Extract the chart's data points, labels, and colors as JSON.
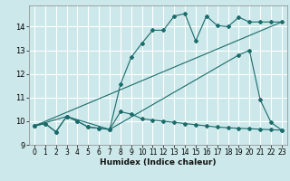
{
  "xlabel": "Humidex (Indice chaleur)",
  "bg_color": "#cde8ea",
  "grid_color": "#ffffff",
  "line_color": "#1a6b6b",
  "xlim": [
    -0.5,
    23.5
  ],
  "ylim": [
    9.0,
    14.9
  ],
  "yticks": [
    9,
    10,
    11,
    12,
    13,
    14
  ],
  "xticks": [
    0,
    1,
    2,
    3,
    4,
    5,
    6,
    7,
    8,
    9,
    10,
    11,
    12,
    13,
    14,
    15,
    16,
    17,
    18,
    19,
    20,
    21,
    22,
    23
  ],
  "line1_x": [
    0,
    1,
    2,
    3,
    4,
    5,
    6,
    7,
    8,
    9,
    10,
    11,
    12,
    13,
    14,
    15,
    16,
    17,
    18,
    19,
    20,
    21,
    22,
    23
  ],
  "line1_y": [
    9.8,
    9.9,
    9.55,
    10.2,
    10.0,
    9.75,
    9.7,
    9.65,
    11.55,
    12.7,
    13.3,
    13.85,
    13.85,
    14.45,
    14.55,
    13.4,
    14.45,
    14.05,
    14.0,
    14.4,
    14.2,
    14.2,
    14.2,
    14.2
  ],
  "line2_x": [
    0,
    1,
    2,
    3,
    4,
    5,
    6,
    7,
    8,
    9,
    10,
    11,
    12,
    13,
    14,
    15,
    16,
    17,
    18,
    19,
    20,
    21,
    22,
    23
  ],
  "line2_y": [
    9.8,
    9.9,
    9.55,
    10.2,
    10.0,
    9.75,
    9.7,
    9.65,
    10.4,
    10.3,
    10.1,
    10.05,
    10.0,
    9.95,
    9.9,
    9.85,
    9.8,
    9.75,
    9.72,
    9.7,
    9.68,
    9.66,
    9.64,
    9.62
  ],
  "line3_x": [
    0,
    3,
    7,
    19,
    20,
    21,
    22,
    23
  ],
  "line3_y": [
    9.8,
    10.2,
    9.65,
    12.8,
    13.0,
    10.9,
    9.95,
    9.62
  ],
  "line4_x": [
    0,
    23
  ],
  "line4_y": [
    9.8,
    14.2
  ]
}
